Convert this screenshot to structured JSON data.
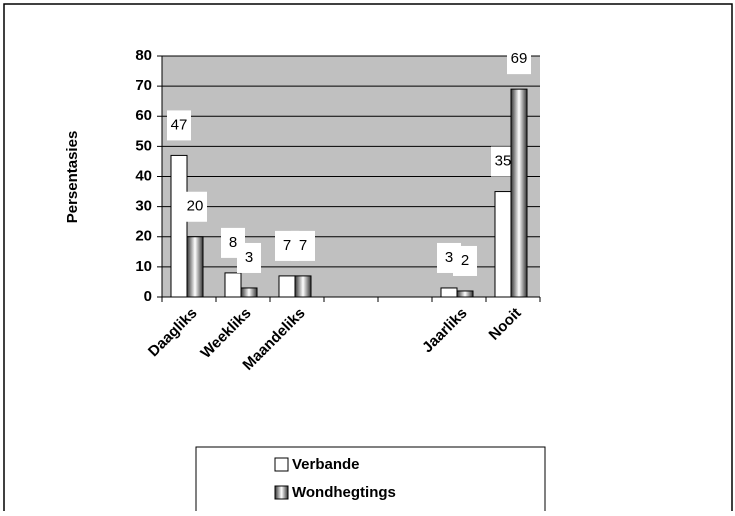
{
  "chart_data": {
    "type": "bar",
    "y_label": "Persentasies",
    "categories": [
      "Daagliks",
      "Weekliks",
      "Maandeliks",
      null,
      null,
      "Jaarliks",
      "Nooit"
    ],
    "series": [
      {
        "name": "Verbande",
        "color": "#ffffff",
        "values": [
          47,
          8,
          7,
          null,
          null,
          3,
          35
        ]
      },
      {
        "name": "Wondhegtings",
        "color": "#333333",
        "values": [
          20,
          3,
          7,
          null,
          null,
          2,
          69
        ]
      }
    ],
    "ylim": [
      0,
      80
    ],
    "yticks": [
      0,
      10,
      20,
      30,
      40,
      50,
      60,
      70,
      80
    ],
    "grid": true,
    "legend": "bottom"
  }
}
